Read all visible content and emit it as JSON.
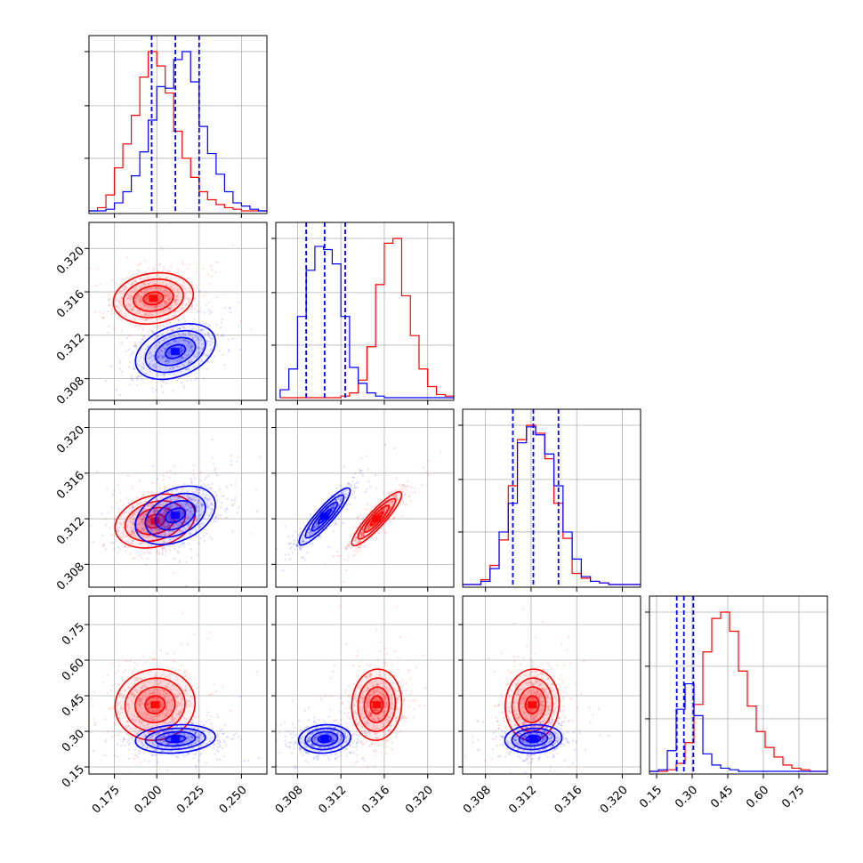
{
  "colors": {
    "red": "#ff0000",
    "blue": "#0000ff",
    "grid": "#b0b0b0",
    "frame": "#000000"
  },
  "chart_data": {
    "type": "corner",
    "title": "",
    "series": [
      {
        "name": "",
        "color": "#ff0000"
      },
      {
        "name": "",
        "color": "#0000ff"
      }
    ],
    "params": [
      {
        "range": [
          0.16,
          0.265
        ],
        "ticks": [
          0.175,
          0.2,
          0.225,
          0.25
        ],
        "tick_labels": [
          "0.175",
          "0.200",
          "0.225",
          "0.250"
        ]
      },
      {
        "range": [
          0.306,
          0.3224
        ],
        "ticks": [
          0.308,
          0.312,
          0.316,
          0.32
        ],
        "tick_labels": [
          "0.308",
          "0.312",
          "0.316",
          "0.320"
        ]
      },
      {
        "range": [
          0.306,
          0.3216
        ],
        "ticks": [
          0.308,
          0.312,
          0.316,
          0.32
        ],
        "tick_labels": [
          "0.308",
          "0.312",
          "0.316",
          "0.320"
        ]
      },
      {
        "range": [
          0.12,
          0.87
        ],
        "ticks": [
          0.15,
          0.3,
          0.45,
          0.6,
          0.75
        ],
        "tick_labels": [
          "0.15",
          "0.30",
          "0.45",
          "0.60",
          "0.75"
        ]
      }
    ],
    "histograms": [
      {
        "quantiles_blue": [
          0.197,
          0.211,
          0.225
        ],
        "red": {
          "edges": [
            0.16,
            0.165,
            0.17,
            0.175,
            0.18,
            0.185,
            0.19,
            0.195,
            0.2,
            0.205,
            0.21,
            0.215,
            0.22,
            0.225,
            0.23,
            0.235,
            0.24,
            0.245,
            0.25,
            0.255,
            0.26,
            0.265
          ],
          "counts": [
            0.0,
            0.02,
            0.1,
            0.27,
            0.42,
            0.6,
            0.84,
            1.0,
            0.91,
            0.74,
            0.5,
            0.33,
            0.21,
            0.12,
            0.07,
            0.04,
            0.02,
            0.01,
            0.0,
            0.0,
            0.0
          ]
        },
        "blue": {
          "edges": [
            0.16,
            0.165,
            0.17,
            0.175,
            0.18,
            0.185,
            0.19,
            0.195,
            0.2,
            0.205,
            0.21,
            0.215,
            0.22,
            0.225,
            0.23,
            0.235,
            0.24,
            0.245,
            0.25,
            0.255,
            0.26,
            0.265
          ],
          "counts": [
            0.0,
            0.0,
            0.01,
            0.05,
            0.12,
            0.22,
            0.37,
            0.57,
            0.78,
            0.77,
            0.95,
            1.0,
            0.81,
            0.53,
            0.36,
            0.23,
            0.12,
            0.05,
            0.03,
            0.01,
            0.0
          ]
        }
      },
      {
        "quantiles_blue": [
          0.3088,
          0.3105,
          0.3124
        ],
        "red": {
          "edges": [
            0.3064,
            0.3072,
            0.308,
            0.3088,
            0.3096,
            0.3104,
            0.3112,
            0.312,
            0.3128,
            0.3136,
            0.3144,
            0.3152,
            0.316,
            0.3168,
            0.3176,
            0.3184,
            0.3192,
            0.32,
            0.3208,
            0.3216,
            0.3224
          ],
          "counts": [
            0.0,
            0.0,
            0.0,
            0.0,
            0.0,
            0.0,
            0.0,
            0.01,
            0.03,
            0.11,
            0.32,
            0.71,
            0.97,
            1.0,
            0.64,
            0.39,
            0.18,
            0.07,
            0.02,
            0.01
          ]
        },
        "blue": {
          "edges": [
            0.3064,
            0.3072,
            0.308,
            0.3088,
            0.3096,
            0.3104,
            0.3112,
            0.312,
            0.3128,
            0.3136,
            0.3144,
            0.3152,
            0.316,
            0.3168,
            0.3176,
            0.3184,
            0.3192,
            0.32,
            0.3208,
            0.3216,
            0.3224
          ],
          "counts": [
            0.05,
            0.18,
            0.51,
            0.8,
            0.95,
            0.93,
            0.84,
            0.51,
            0.19,
            0.09,
            0.03,
            0.01,
            0.0,
            0.0,
            0.0,
            0.0,
            0.0,
            0.0,
            0.0,
            0.0
          ]
        }
      },
      {
        "quantiles_blue": [
          0.3104,
          0.3122,
          0.3144
        ],
        "red": {
          "edges": [
            0.306,
            0.3068,
            0.3076,
            0.3084,
            0.3092,
            0.31,
            0.3108,
            0.3116,
            0.3124,
            0.3132,
            0.314,
            0.3148,
            0.3156,
            0.3164,
            0.3172,
            0.318,
            0.3188,
            0.3196,
            0.3204,
            0.3212,
            0.3216
          ],
          "counts": [
            0.0,
            0.0,
            0.03,
            0.12,
            0.28,
            0.62,
            0.91,
            1.0,
            0.95,
            0.79,
            0.51,
            0.29,
            0.07,
            0.04,
            0.02,
            0.01,
            0.0,
            0.0,
            0.0,
            0.0
          ]
        },
        "blue": {
          "edges": [
            0.306,
            0.3068,
            0.3076,
            0.3084,
            0.3092,
            0.31,
            0.3108,
            0.3116,
            0.3124,
            0.3132,
            0.314,
            0.3148,
            0.3156,
            0.3164,
            0.3172,
            0.318,
            0.3188,
            0.3196,
            0.3204,
            0.3212,
            0.3216
          ],
          "counts": [
            0.0,
            0.0,
            0.02,
            0.1,
            0.33,
            0.51,
            0.89,
            0.99,
            0.94,
            0.82,
            0.62,
            0.33,
            0.16,
            0.05,
            0.02,
            0.01,
            0.0,
            0.0,
            0.0,
            0.0
          ]
        }
      },
      {
        "quantiles_blue": [
          0.235,
          0.265,
          0.305
        ],
        "red": {
          "edges": [
            0.12,
            0.1575,
            0.195,
            0.2325,
            0.27,
            0.3075,
            0.345,
            0.3825,
            0.42,
            0.4575,
            0.495,
            0.5325,
            0.57,
            0.6075,
            0.645,
            0.6825,
            0.72,
            0.7575,
            0.795,
            0.8325,
            0.87
          ],
          "counts": [
            0.0,
            0.0,
            0.01,
            0.05,
            0.18,
            0.42,
            0.75,
            0.96,
            1.0,
            0.88,
            0.63,
            0.41,
            0.25,
            0.15,
            0.09,
            0.04,
            0.02,
            0.01,
            0.0,
            0.0
          ]
        },
        "blue": {
          "edges": [
            0.12,
            0.1575,
            0.195,
            0.2325,
            0.27,
            0.3075,
            0.345,
            0.3825,
            0.42,
            0.4575,
            0.495,
            0.5325,
            0.57,
            0.6075,
            0.645,
            0.6825,
            0.72,
            0.7575,
            0.795,
            0.8325,
            0.87
          ],
          "counts": [
            0.0,
            0.01,
            0.13,
            0.39,
            0.55,
            0.35,
            0.11,
            0.04,
            0.02,
            0.01,
            0.0,
            0.0,
            0.0,
            0.0,
            0.0,
            0.0,
            0.0,
            0.0,
            0.0,
            0.0
          ]
        }
      }
    ],
    "pairs": [
      {
        "row": 1,
        "col": 0,
        "red": {
          "mean": [
            0.198,
            0.3154
          ],
          "sd": [
            0.0118,
            0.00118
          ],
          "rho": 0.15
        },
        "blue": {
          "mean": [
            0.211,
            0.3105
          ],
          "sd": [
            0.0118,
            0.00128
          ],
          "rho": 0.35
        }
      },
      {
        "row": 2,
        "col": 0,
        "red": {
          "mean": [
            0.199,
            0.3118
          ],
          "sd": [
            0.0118,
            0.00118
          ],
          "rho": 0.25
        },
        "blue": {
          "mean": [
            0.211,
            0.3123
          ],
          "sd": [
            0.0118,
            0.00128
          ],
          "rho": 0.35
        }
      },
      {
        "row": 2,
        "col": 1,
        "red": {
          "mean": [
            0.3153,
            0.312
          ],
          "sd": [
            0.00115,
            0.00118
          ],
          "rho": 0.9
        },
        "blue": {
          "mean": [
            0.3105,
            0.3122
          ],
          "sd": [
            0.00118,
            0.00125
          ],
          "rho": 0.9
        }
      },
      {
        "row": 3,
        "col": 0,
        "red": {
          "mean": [
            0.199,
            0.412
          ],
          "sd": [
            0.0118,
            0.075
          ],
          "rho": 0.05
        },
        "blue": {
          "mean": [
            0.211,
            0.268
          ],
          "sd": [
            0.0118,
            0.03
          ],
          "rho": 0.15
        }
      },
      {
        "row": 3,
        "col": 1,
        "red": {
          "mean": [
            0.3153,
            0.412
          ],
          "sd": [
            0.00115,
            0.075
          ],
          "rho": 0.05
        },
        "blue": {
          "mean": [
            0.3105,
            0.268
          ],
          "sd": [
            0.0012,
            0.03
          ],
          "rho": 0.1
        }
      },
      {
        "row": 3,
        "col": 2,
        "red": {
          "mean": [
            0.3121,
            0.412
          ],
          "sd": [
            0.00118,
            0.075
          ],
          "rho": 0.05
        },
        "blue": {
          "mean": [
            0.3122,
            0.268
          ],
          "sd": [
            0.00125,
            0.03
          ],
          "rho": 0.1
        }
      }
    ]
  }
}
